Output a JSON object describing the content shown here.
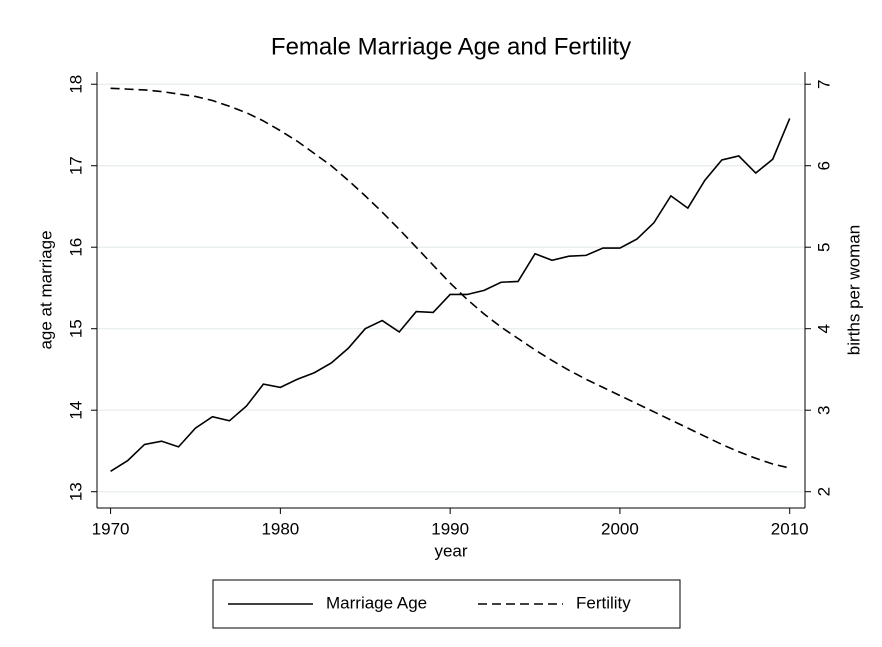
{
  "chart_data": {
    "type": "line",
    "title": "Female Marriage Age and Fertility",
    "xlabel": "year",
    "ylabel": "age at marriage",
    "y2label": "births per woman",
    "x": [
      1970,
      1971,
      1972,
      1973,
      1974,
      1975,
      1976,
      1977,
      1978,
      1979,
      1980,
      1981,
      1982,
      1983,
      1984,
      1985,
      1986,
      1987,
      1988,
      1989,
      1990,
      1991,
      1992,
      1993,
      1994,
      1995,
      1996,
      1997,
      1998,
      1999,
      2000,
      2001,
      2002,
      2003,
      2004,
      2005,
      2006,
      2007,
      2008,
      2009,
      2010
    ],
    "series": [
      {
        "name": "Marriage Age",
        "color": "#000000",
        "dash": "solid",
        "values": [
          13.25,
          13.38,
          13.58,
          13.62,
          13.55,
          13.78,
          13.92,
          13.87,
          14.05,
          14.32,
          14.28,
          14.38,
          14.46,
          14.58,
          14.76,
          15.0,
          15.1,
          14.96,
          15.21,
          15.2,
          15.42,
          15.42,
          15.47,
          15.57,
          15.58,
          15.92,
          15.84,
          15.89,
          15.9,
          15.99,
          15.99,
          16.1,
          16.3,
          16.63,
          16.48,
          16.82,
          17.07,
          17.12,
          16.91,
          17.08,
          17.58
        ]
      },
      {
        "name": "Fertility",
        "color": "#000000",
        "dash": "dashed",
        "axis": "y2",
        "values": [
          6.95,
          6.94,
          6.93,
          6.91,
          6.88,
          6.85,
          6.8,
          6.73,
          6.65,
          6.55,
          6.43,
          6.3,
          6.15,
          6.0,
          5.82,
          5.63,
          5.43,
          5.22,
          5.0,
          4.78,
          4.56,
          4.36,
          4.18,
          4.02,
          3.88,
          3.74,
          3.61,
          3.49,
          3.38,
          3.28,
          3.18,
          3.08,
          2.98,
          2.88,
          2.78,
          2.68,
          2.58,
          2.49,
          2.41,
          2.34,
          2.29
        ]
      }
    ],
    "xlim": [
      1969.2,
      2010.9
    ],
    "xticks": [
      1970,
      1980,
      1990,
      2000,
      2010
    ],
    "ylim": [
      12.8,
      18.15
    ],
    "yticks": [
      13,
      14,
      15,
      16,
      17,
      18
    ],
    "y2lim": [
      1.8,
      7.15
    ],
    "y2ticks": [
      2,
      3,
      4,
      5,
      6,
      7
    ],
    "grid": true,
    "legend": "bottom"
  }
}
